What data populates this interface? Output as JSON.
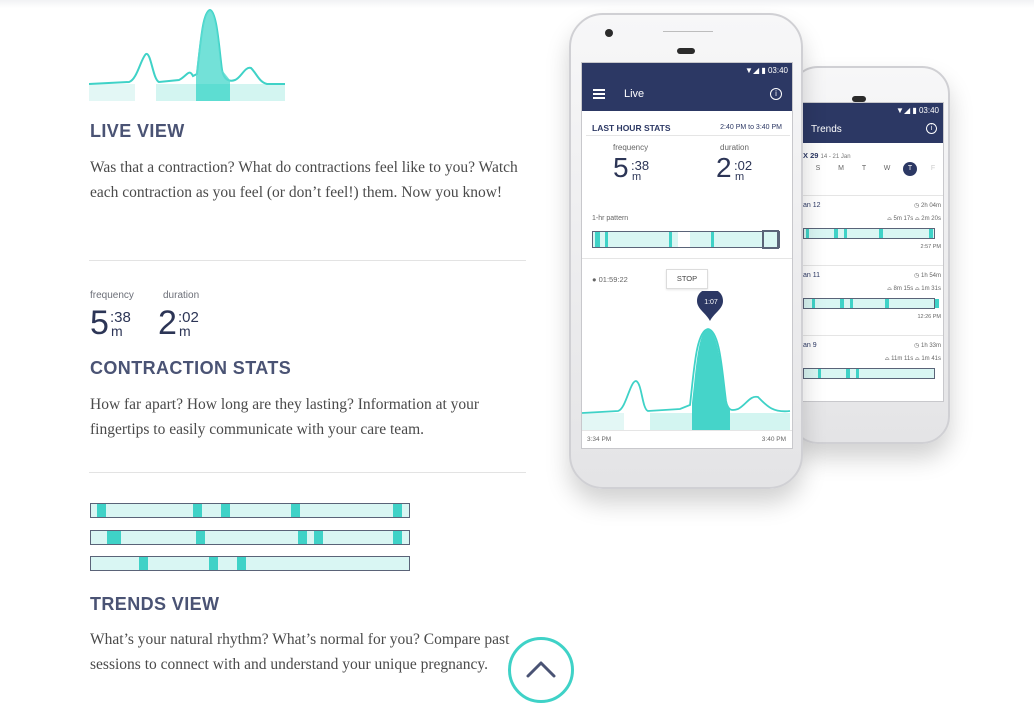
{
  "sections": {
    "live": {
      "title": "LIVE VIEW",
      "body": "Was that a contraction? What do contractions feel like to you? Watch each contraction as you feel (or don’t feel!) them. Now you know!"
    },
    "stats": {
      "frequency_label": "frequency",
      "frequency_main": "5",
      "frequency_sup": ":38",
      "frequency_unit": "m",
      "duration_label": "duration",
      "duration_main": "2",
      "duration_sup": ":02",
      "duration_unit": "m",
      "title": "CONTRACTION STATS",
      "body": "How far apart? How long are they lasting? Information at your fingertips to easily communicate with your care team."
    },
    "trends": {
      "title": "TRENDS VIEW",
      "body": "What’s your natural rhythm? What’s normal for you? Compare past sessions to connect with and understand your unique pregnancy."
    }
  },
  "front_phone": {
    "status_time": "03:40",
    "app_title": "Live",
    "stats_header": "LAST HOUR STATS",
    "stats_range": "2:40 PM to 3:40 PM",
    "frequency_label": "frequency",
    "frequency_main": "5",
    "frequency_sup": ":38",
    "frequency_unit": "m",
    "duration_label": "duration",
    "duration_main": "2",
    "duration_sup": ":02",
    "duration_unit": "m",
    "pattern_label": "1-hr pattern",
    "timer": "01:59:22",
    "stop_label": "STOP",
    "bubble": "1:07",
    "time_start": "3:34 PM",
    "time_end": "3:40 PM"
  },
  "back_phone": {
    "status_time": "03:40",
    "app_title": "Trends",
    "week_label": "X 29",
    "week_range": "14 - 21 Jan",
    "days": [
      "S",
      "M",
      "T",
      "W",
      "T",
      "F"
    ],
    "sessions": [
      {
        "date": "an 12",
        "total": "2h 04m",
        "freq": "5m 17s",
        "dur": "2m 20s",
        "end": "2:57 PM"
      },
      {
        "date": "an 11",
        "total": "1h 54m",
        "freq": "8m 15s",
        "dur": "1m 31s",
        "end": "12:26 PM"
      },
      {
        "date": "an 9",
        "total": "1h 33m",
        "freq": "11m 11s",
        "dur": "1m 41s",
        "end": ""
      }
    ]
  },
  "trend_bars": [
    [
      0.02,
      0.32,
      0.41,
      0.63,
      0.95
    ],
    [
      0.05,
      0.33,
      0.65,
      0.7,
      0.95
    ],
    [
      0.15,
      0.37,
      0.46
    ]
  ],
  "colors": {
    "teal": "#3fd2c7",
    "navy": "#2c3864",
    "light_teal": "#d9f6f3"
  },
  "scroll_button_icon": "chevron-up-icon"
}
